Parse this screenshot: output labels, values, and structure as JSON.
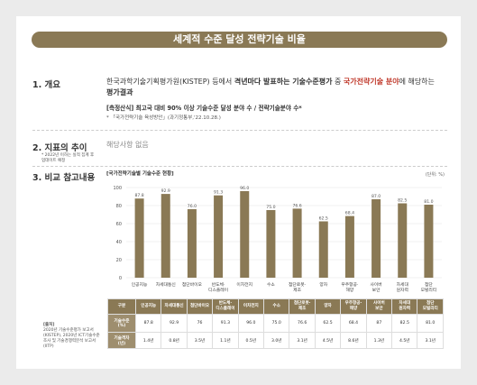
{
  "title": "세계적 수준 달성 전략기술 비율",
  "sections": {
    "s1": {
      "title": "1. 개요",
      "line1a": "한국과학기술기획평가원(KISTEP) 등에서 ",
      "line1b": "격년마다 발표하는 기술수준평가",
      "line1c": " 중 ",
      "line1d": "국가전략기술 분야",
      "line1e": "에 해당하는",
      "line2": "평가결과",
      "formula": "[측정산식] 최고국 대비 90% 이상 기술수준 달성 분야 수 / 전략기술분야 수*",
      "footnote": "* 「국가전략기술 육성방안」(과기정통부,'22.10.28.)"
    },
    "s2": {
      "title": "2. 지표의 추이",
      "note1": "* 2022년 이하는 실적 집계 후",
      "note2": "업데이트 예정",
      "text": "해당사항 없음"
    },
    "s3": {
      "title": "3. 비교 참고내용"
    }
  },
  "chart_data": {
    "type": "bar",
    "title": "[국가전략기술별 기술수준 현황]",
    "unit": "(단위: %)",
    "categories": [
      "인공지능",
      "차세대통신",
      "첨단바이오",
      "반도체·디스플레이",
      "이차전지",
      "수소",
      "첨단로봇·제조",
      "양자",
      "우주항공·해양",
      "사이버보안",
      "차세대원자력",
      "첨단모빌리티"
    ],
    "category_lines": [
      [
        "인공지능"
      ],
      [
        "차세대통신"
      ],
      [
        "첨단바이오"
      ],
      [
        "반도체·",
        "디스플레이"
      ],
      [
        "이차전지"
      ],
      [
        "수소"
      ],
      [
        "첨단로봇·",
        "제조"
      ],
      [
        "양자"
      ],
      [
        "우주항공·",
        "해양"
      ],
      [
        "사이버",
        "보안"
      ],
      [
        "차세대",
        "원자력"
      ],
      [
        "첨단",
        "모빌리티"
      ]
    ],
    "values": [
      87.8,
      92.9,
      76.0,
      91.3,
      96.0,
      75.0,
      76.6,
      62.5,
      68.4,
      87.0,
      82.5,
      81.0
    ],
    "value_labels": [
      "87.8",
      "92.9",
      "76.0",
      "91.3",
      "96.0",
      "75.0",
      "76.6",
      "62.5",
      "68.4",
      "87.0",
      "82.5",
      "81.0"
    ],
    "yticks": [
      0,
      20,
      40,
      60,
      80,
      100
    ],
    "ylim": [
      0,
      100
    ],
    "bar_color": "#8a7955"
  },
  "table": {
    "corner": "구분",
    "headers": [
      "인공지능",
      "차세대통신",
      "첨단바이오",
      "반도체·\n디스플레이",
      "이차전지",
      "수소",
      "첨단로봇·\n제조",
      "양자",
      "우주항공·\n해양",
      "사이버\n보안",
      "차세대\n원자력",
      "첨단\n모빌리티"
    ],
    "row1_label": "기술수준\n(%)",
    "row1": [
      "87.8",
      "92.9",
      "76",
      "91.3",
      "96.0",
      "75.0",
      "76.6",
      "62.5",
      "68.4",
      "87",
      "82.5",
      "81.0"
    ],
    "row2_label": "기술격차\n(년)",
    "row2": [
      "1.4년",
      "0.8년",
      "3.5년",
      "1.1년",
      "0.5년",
      "3.0년",
      "3.1년",
      "4.5년",
      "8.6년",
      "1.3년",
      "4.5년",
      "3.1년"
    ]
  },
  "source": {
    "title": "[출처]",
    "text": "2020년 기술수준평가 보고서(KISTEP), 2020년 ICT기술수준조사 및 기술경쟁력분석 보고서(IITP)"
  }
}
